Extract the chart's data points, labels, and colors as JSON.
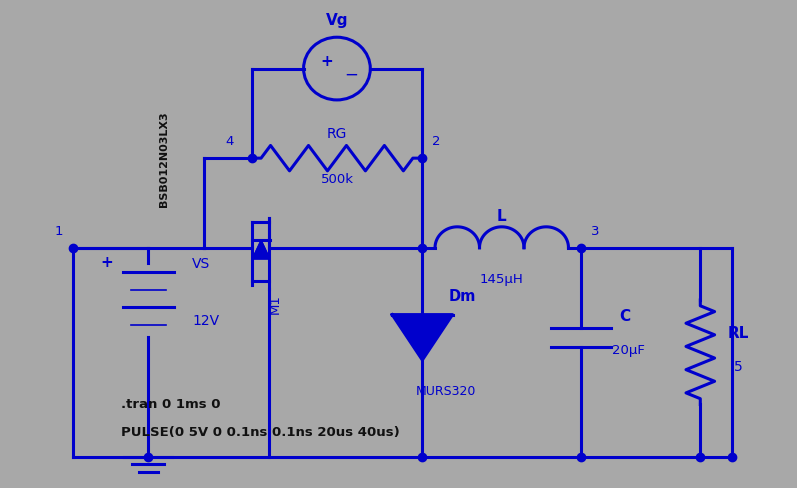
{
  "bg_color": "#a8a8a8",
  "line_color": "#0000cc",
  "line_width": 2.2,
  "dot_color": "#0000cc",
  "text_color": "#0000cc",
  "black_text": "#111111",
  "fig_width": 7.97,
  "fig_height": 4.88,
  "annotation_line1": ".tran 0 1ms 0",
  "annotation_line2": "PULSE(0 5V 0 0.1ns 0.1ns 20us 40us)",
  "label_BSB": "BSB012N03LX3",
  "label_Vg": "Vg",
  "label_RG": "RG",
  "label_500k": "500k",
  "label_L": "L",
  "label_145uH": "145μH",
  "label_C": "C",
  "label_20uF": "20μF",
  "label_RL": "RL",
  "label_5": "5",
  "label_VS": "VS",
  "label_12V": "12V",
  "label_M1": "M1",
  "label_Dm": "Dm",
  "label_MURS320": "MURS320",
  "label_1": "1",
  "label_2": "2",
  "label_3": "3",
  "label_4": "4",
  "label_plus": "+"
}
